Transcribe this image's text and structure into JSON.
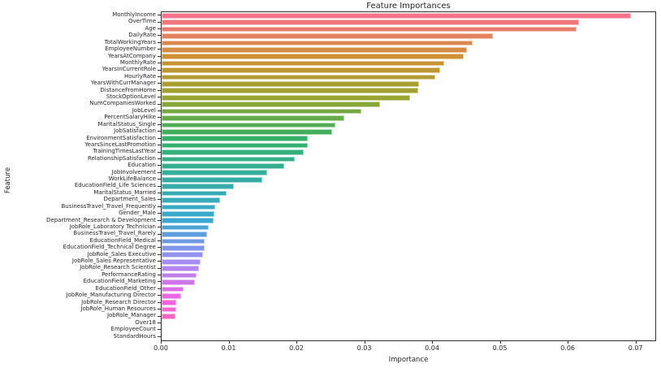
{
  "colors": {
    "background": "#ffffff",
    "spine": "#333333",
    "text": "#262626"
  },
  "chart_data": {
    "type": "bar",
    "orientation": "horizontal",
    "title": "Feature Importances",
    "xlabel": "Importance",
    "ylabel": "Feature",
    "xlim": [
      0,
      0.0728
    ],
    "x_ticks": [
      0,
      0.01,
      0.02,
      0.03,
      0.04,
      0.05,
      0.06,
      0.07
    ],
    "x_tick_labels": [
      "0.00",
      "0.01",
      "0.02",
      "0.03",
      "0.04",
      "0.05",
      "0.06",
      "0.07"
    ],
    "grid": false,
    "legend": null,
    "categories": [
      "MonthlyIncome",
      "OverTime",
      "Age",
      "DailyRate",
      "TotalWorkingYears",
      "EmployeeNumber",
      "YearsAtCompany",
      "MonthlyRate",
      "YearsInCurrentRole",
      "HourlyRate",
      "YearsWithCurrManager",
      "DistanceFromHome",
      "StockOptionLevel",
      "NumCompaniesWorked",
      "JobLevel",
      "PercentSalaryHike",
      "MaritalStatus_Single",
      "JobSatisfaction",
      "EnvironmentSatisfaction",
      "YearsSinceLastPromotion",
      "TrainingTimesLastYear",
      "RelationshipSatisfaction",
      "Education",
      "JobInvolvement",
      "WorkLifeBalance",
      "EducationField_Life Sciences",
      "MaritalStatus_Married",
      "Department_Sales",
      "BusinessTravel_Travel_Frequently",
      "Gender_Male",
      "Department_Research & Development",
      "JobRole_Laboratory Technician",
      "BusinessTravel_Travel_Rarely",
      "EducationField_Medical",
      "EducationField_Technical Degree",
      "JobRole_Sales Executive",
      "JobRole_Sales Representative",
      "JobRole_Research Scientist",
      "PerformanceRating",
      "EducationField_Marketing",
      "EducationField_Other",
      "JobRole_Manufacturing Director",
      "JobRole_Research Director",
      "JobRole_Human Resources",
      "JobRole_Manager",
      "Over18",
      "EmployeeCount",
      "StandardHours"
    ],
    "values": [
      0.0692,
      0.0615,
      0.0612,
      0.0489,
      0.0458,
      0.045,
      0.0445,
      0.0417,
      0.0411,
      0.0403,
      0.0379,
      0.0378,
      0.0366,
      0.0322,
      0.0295,
      0.027,
      0.0256,
      0.0251,
      0.0216,
      0.0216,
      0.021,
      0.0196,
      0.0181,
      0.0156,
      0.0149,
      0.0106,
      0.0096,
      0.0086,
      0.0079,
      0.0078,
      0.0077,
      0.0069,
      0.0067,
      0.0064,
      0.0063,
      0.0061,
      0.0058,
      0.0055,
      0.0051,
      0.0049,
      0.0032,
      0.0029,
      0.0022,
      0.0022,
      0.002,
      0.0,
      0.0,
      0.0
    ],
    "bar_colors": [
      "#f77189",
      "#f0767b",
      "#e97b6c",
      "#e3815e",
      "#dc864f",
      "#d58b41",
      "#ce9032",
      "#c59332",
      "#bc9732",
      "#b39a32",
      "#a99d31",
      "#a0a131",
      "#97a431",
      "#86a63a",
      "#75a843",
      "#65ab4c",
      "#54ad54",
      "#43af5d",
      "#32b166",
      "#33b070",
      "#33b07b",
      "#34af85",
      "#35ae8f",
      "#35ae9a",
      "#36ada4",
      "#37acab",
      "#37abb3",
      "#38aaba",
      "#38a9c1",
      "#39a8c9",
      "#39a7d0",
      "#4ba3d6",
      "#5d9edc",
      "#6f9ae2",
      "#8095e8",
      "#9291ee",
      "#a48cf4",
      "#b285f0",
      "#bf7eec",
      "#cd76e9",
      "#da6fe5",
      "#e868e1",
      "#f561dd",
      "#f564cf",
      "#f666c1",
      "#f669b3",
      "#f66ca5",
      "#f76e97"
    ]
  }
}
